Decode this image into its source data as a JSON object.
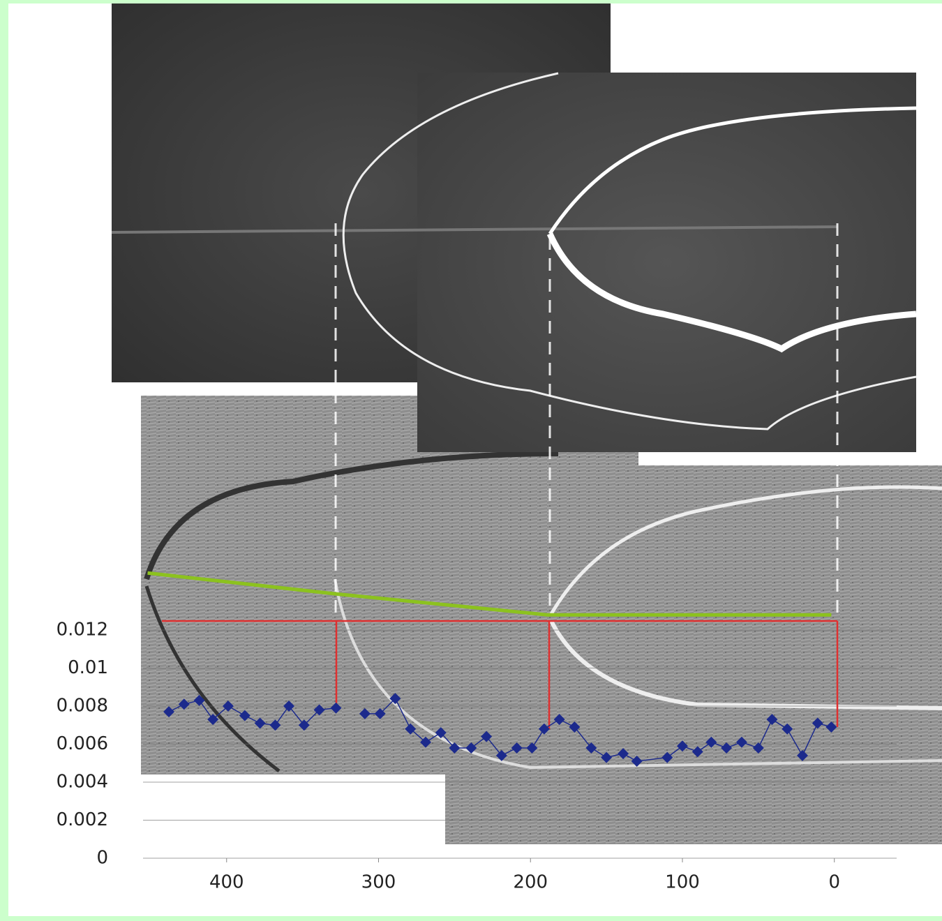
{
  "chart_data": {
    "type": "line",
    "x": [
      438,
      428,
      418,
      409,
      399,
      388,
      378,
      368,
      359,
      349,
      339,
      328,
      318,
      309,
      299,
      289,
      279,
      269,
      259,
      250,
      239,
      229,
      219,
      209,
      199,
      191,
      181,
      171,
      160,
      150,
      139,
      130,
      110,
      100,
      90,
      81,
      71,
      61,
      50,
      41,
      31,
      21,
      11,
      2
    ],
    "series": [
      {
        "color": "#1c2a8c",
        "marker": "diamond",
        "values": [
          0.0077,
          0.0081,
          0.0083,
          0.0073,
          0.008,
          0.0075,
          0.0071,
          0.007,
          0.008,
          0.007,
          0.0078,
          0.0079,
          null,
          0.0076,
          0.0076,
          0.0084,
          0.0068,
          0.0061,
          0.0066,
          0.0058,
          0.0058,
          0.0064,
          0.0054,
          0.0058,
          0.0058,
          0.0068,
          0.0073,
          0.0069,
          0.0058,
          0.0053,
          0.0055,
          0.0051,
          0.0053,
          0.0059,
          0.0056,
          0.0061,
          0.0058,
          0.0061,
          0.0058,
          0.0073,
          0.0068,
          0.0054,
          0.0071,
          0.0069
        ]
      },
      {
        "color": "#8cc21e",
        "x": [
          452,
          328,
          189,
          2
        ],
        "values": [
          0.015,
          0.0139,
          0.0128,
          0.0128
        ]
      }
    ],
    "xlim": [
      455,
      -41
    ],
    "xticks": [
      400,
      300,
      200,
      100,
      0
    ],
    "ylim": [
      0,
      0.016
    ],
    "yticks": [
      0.012,
      0.01,
      0.008,
      0.006,
      0.004,
      0.002,
      0
    ],
    "grid": true
  }
}
